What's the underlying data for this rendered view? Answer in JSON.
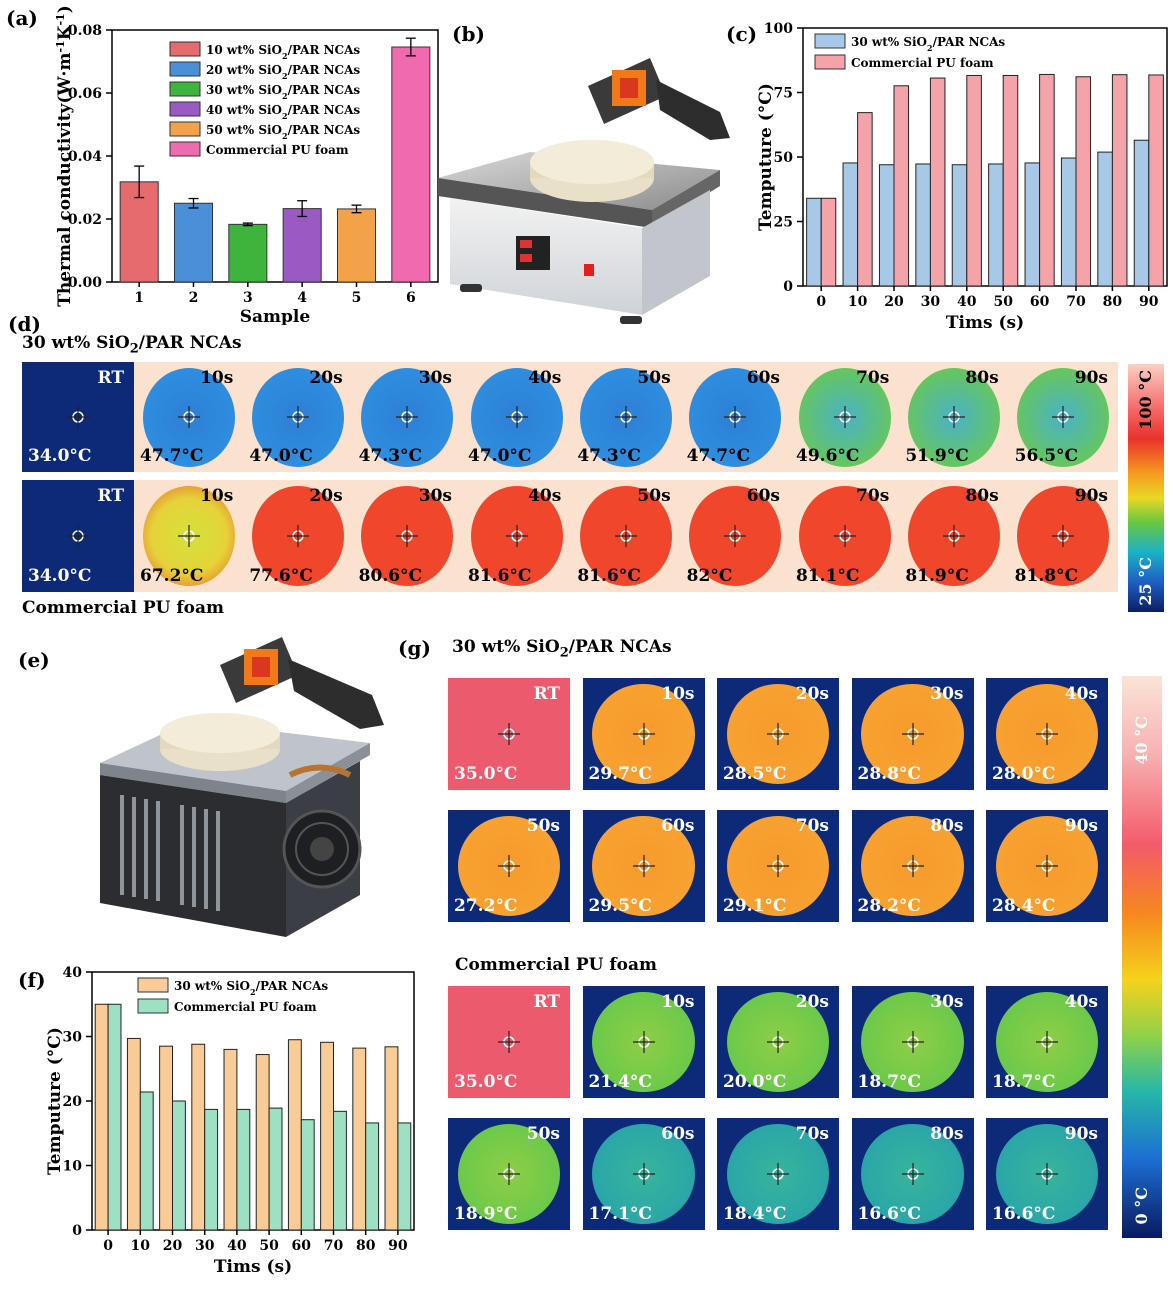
{
  "panel_labels": {
    "a": "(a)",
    "b": "(b)",
    "c": "(c)",
    "d": "(d)",
    "e": "(e)",
    "f": "(f)",
    "g": "(g)"
  },
  "chart_data": [
    {
      "id": "a",
      "type": "bar",
      "categories": [
        "1",
        "2",
        "3",
        "4",
        "5",
        "6"
      ],
      "values": [
        0.0318,
        0.025,
        0.0183,
        0.0233,
        0.0232,
        0.0746
      ],
      "errors": [
        0.005,
        0.0015,
        0.0004,
        0.0025,
        0.0012,
        0.0028
      ],
      "colors": [
        "#e56b6f",
        "#4a90d9",
        "#3db53d",
        "#9b59c4",
        "#f4a24a",
        "#f06ab0"
      ],
      "legend": [
        "10 wt% SiO",
        "20 wt% SiO",
        "30 wt% SiO",
        "40 wt% SiO",
        "50 wt% SiO",
        "Commercial PU foam"
      ],
      "legend_suffix": "/PAR NCAs",
      "xlabel": "Sample",
      "ylabel": "Thermal conductivity(W·m",
      "yticks": [
        "0.00",
        "0.02",
        "0.04",
        "0.06",
        "0.08"
      ],
      "ylim": [
        0,
        0.08
      ]
    },
    {
      "id": "c",
      "type": "bar",
      "categories": [
        "0",
        "10",
        "20",
        "30",
        "40",
        "50",
        "60",
        "70",
        "80",
        "90"
      ],
      "series": [
        {
          "name": "30 wt% SiO",
          "values": [
            34,
            47.7,
            47,
            47.3,
            47,
            47.3,
            47.7,
            49.6,
            51.9,
            56.5
          ],
          "color": "#a8c8e8"
        },
        {
          "name": "Commercial PU foam",
          "values": [
            34,
            67.2,
            77.6,
            80.6,
            81.6,
            81.6,
            82,
            81.1,
            81.9,
            81.8
          ],
          "color": "#f4a3a8"
        }
      ],
      "series_suffix": "/PAR NCAs",
      "xlabel": "Tims (s)",
      "ylabel": "Temputure (°C)",
      "yticks": [
        "0",
        "25",
        "50",
        "75",
        "100"
      ],
      "ylim": [
        0,
        100
      ]
    },
    {
      "id": "f",
      "type": "bar",
      "categories": [
        "0",
        "10",
        "20",
        "30",
        "40",
        "50",
        "60",
        "70",
        "80",
        "90"
      ],
      "series": [
        {
          "name": "30 wt% SiO",
          "values": [
            35,
            29.7,
            28.5,
            28.8,
            28,
            27.2,
            29.5,
            29.1,
            28.2,
            28.4
          ],
          "color": "#f9cc97"
        },
        {
          "name": "Commercial PU foam",
          "values": [
            35,
            21.4,
            20,
            18.7,
            18.7,
            18.9,
            17.1,
            18.4,
            16.6,
            16.6
          ],
          "color": "#9ee0c2"
        }
      ],
      "series_suffix": "/PAR NCAs",
      "xlabel": "Tims (s)",
      "ylabel": "Temputure (°C)",
      "yticks": [
        "0",
        "10",
        "20",
        "30",
        "40"
      ],
      "ylim": [
        0,
        40
      ]
    }
  ],
  "panel_d": {
    "title": "30 wt% SiO",
    "title_suffix": "/PAR  NCAs",
    "bottom_label": "Commercial PU foam",
    "row1": [
      {
        "time": "RT",
        "temp": "34.0°C"
      },
      {
        "time": "10s",
        "temp": "47.7°C"
      },
      {
        "time": "20s",
        "temp": "47.0°C"
      },
      {
        "time": "30s",
        "temp": "47.3°C"
      },
      {
        "time": "40s",
        "temp": "47.0°C"
      },
      {
        "time": "50s",
        "temp": "47.3°C"
      },
      {
        "time": "60s",
        "temp": "47.7°C"
      },
      {
        "time": "70s",
        "temp": "49.6°C"
      },
      {
        "time": "80s",
        "temp": "51.9°C"
      },
      {
        "time": "90s",
        "temp": "56.5°C"
      }
    ],
    "row2": [
      {
        "time": "RT",
        "temp": "34.0°C"
      },
      {
        "time": "10s",
        "temp": "67.2°C"
      },
      {
        "time": "20s",
        "temp": "77.6°C"
      },
      {
        "time": "30s",
        "temp": "80.6°C"
      },
      {
        "time": "40s",
        "temp": "81.6°C"
      },
      {
        "time": "50s",
        "temp": "81.6°C"
      },
      {
        "time": "60s",
        "temp": "82°C"
      },
      {
        "time": "70s",
        "temp": "81.1°C"
      },
      {
        "time": "80s",
        "temp": "81.9°C"
      },
      {
        "time": "90s",
        "temp": "81.8°C"
      }
    ],
    "scale_top": "100 °C",
    "scale_bottom": "25 °C"
  },
  "panel_g": {
    "title": "30 wt% SiO",
    "title_suffix": "/PAR  NCAs",
    "mid_label": "Commercial PU foam",
    "nca": [
      {
        "time": "RT",
        "temp": "35.0°C"
      },
      {
        "time": "10s",
        "temp": "29.7°C"
      },
      {
        "time": "20s",
        "temp": "28.5°C"
      },
      {
        "time": "30s",
        "temp": "28.8°C"
      },
      {
        "time": "40s",
        "temp": "28.0°C"
      },
      {
        "time": "50s",
        "temp": "27.2°C"
      },
      {
        "time": "60s",
        "temp": "29.5°C"
      },
      {
        "time": "70s",
        "temp": "29.1°C"
      },
      {
        "time": "80s",
        "temp": "28.2°C"
      },
      {
        "time": "90s",
        "temp": "28.4°C"
      }
    ],
    "pu": [
      {
        "time": "RT",
        "temp": "35.0°C"
      },
      {
        "time": "10s",
        "temp": "21.4°C"
      },
      {
        "time": "20s",
        "temp": "20.0°C"
      },
      {
        "time": "30s",
        "temp": "18.7°C"
      },
      {
        "time": "40s",
        "temp": "18.7°C"
      },
      {
        "time": "50s",
        "temp": "18.9°C"
      },
      {
        "time": "60s",
        "temp": "17.1°C"
      },
      {
        "time": "70s",
        "temp": "18.4°C"
      },
      {
        "time": "80s",
        "temp": "16.6°C"
      },
      {
        "time": "90s",
        "temp": "16.6°C"
      }
    ],
    "scale_top": "40 °C",
    "scale_bottom": "0 °C"
  },
  "colors": {
    "ir_dark": "#0d2a78",
    "ir_cool": "#2d7fd6",
    "ir_warm": "#f0462c",
    "ir_orange": "#f79a2c",
    "ir_green": "#6cc94a",
    "ir_bg": "#fbe2cf",
    "ir_pink": "#ec5a6e"
  }
}
